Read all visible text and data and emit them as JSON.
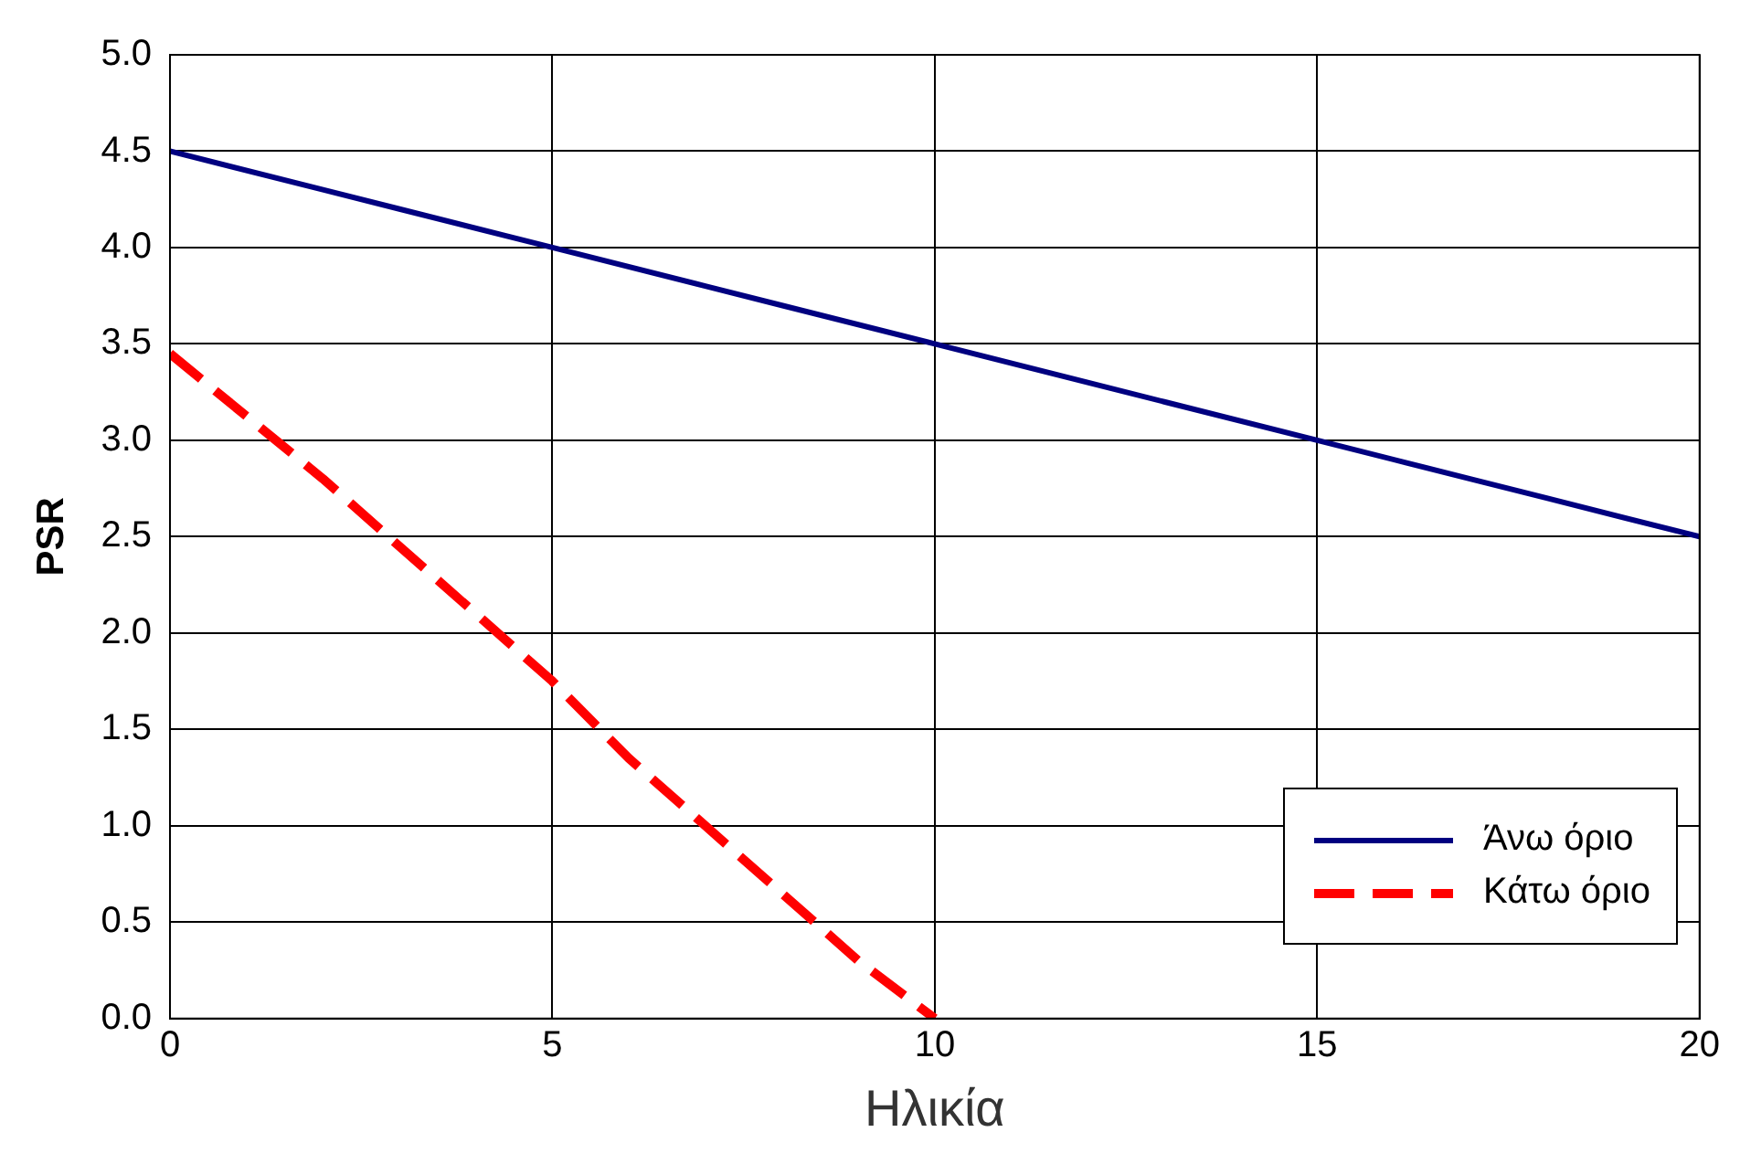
{
  "chart_data": {
    "type": "line",
    "xlabel": "Ηλικία",
    "ylabel": "PSR",
    "xlim": [
      0,
      20
    ],
    "xticks": [
      0,
      5,
      10,
      15,
      20
    ],
    "ylim": [
      0,
      5
    ],
    "yticks": [
      {
        "value": 0,
        "label": "0.0"
      },
      {
        "value": 0.5,
        "label": "0.5"
      },
      {
        "value": 1,
        "label": "1.0"
      },
      {
        "value": 1.5,
        "label": "1.5"
      },
      {
        "value": 2,
        "label": "2.0"
      },
      {
        "value": 2.5,
        "label": "2.5"
      },
      {
        "value": 3,
        "label": "3.0"
      },
      {
        "value": 3.5,
        "label": "3.5"
      },
      {
        "value": 4,
        "label": "4.0"
      },
      {
        "value": 4.5,
        "label": "4.5"
      },
      {
        "value": 5,
        "label": "5.0"
      }
    ],
    "grid": true,
    "legend": "bottom right",
    "marker": "none",
    "series": [
      {
        "name": "Άνω όριο",
        "color": "#000080",
        "line_style": "solid",
        "x": [
          0,
          2,
          3,
          5,
          7,
          8,
          10,
          12,
          13,
          15,
          17,
          18,
          20
        ],
        "values": [
          4.5,
          4.3,
          4.2,
          4.0,
          3.8,
          3.7,
          3.5,
          3.3,
          3.2,
          3.0,
          2.8,
          2.7,
          2.5
        ]
      },
      {
        "name": "Κάτω όριο",
        "color": "#ff0000",
        "line_style": "dashed",
        "x": [
          0,
          2,
          3,
          5,
          6,
          7,
          8,
          9,
          10
        ],
        "values": [
          3.45,
          2.8,
          2.45,
          1.75,
          1.35,
          1.0,
          0.65,
          0.3,
          0
        ]
      }
    ]
  }
}
